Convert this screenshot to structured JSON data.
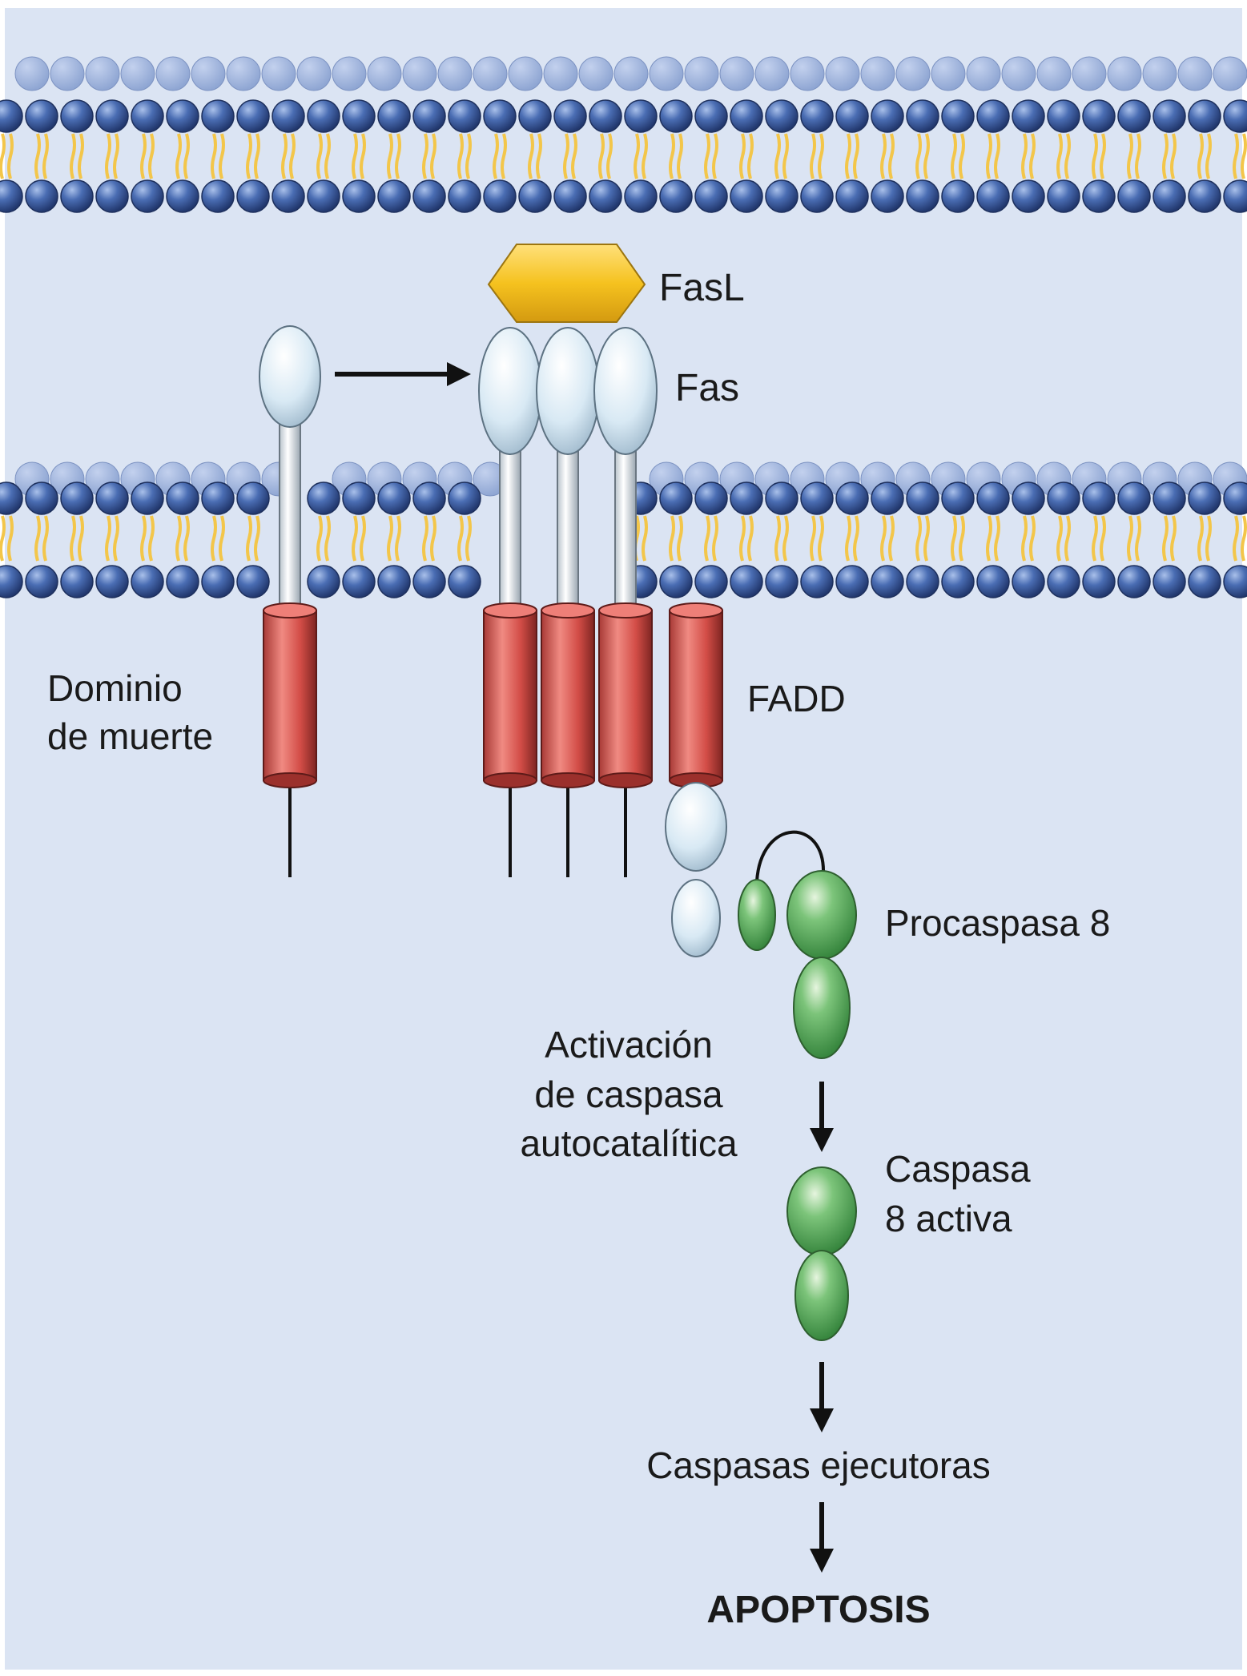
{
  "labels": {
    "fasl": "FasL",
    "fas": "Fas",
    "death_domain_line1": "Dominio",
    "death_domain_line2": "de muerte",
    "fadd": "FADD",
    "procaspase8": "Procaspasa 8",
    "autocatalytic_line1": "Activación",
    "autocatalytic_line2": "de caspasa",
    "autocatalytic_line3": "autocatalítica",
    "active_caspase8_line1": "Caspasa",
    "active_caspase8_line2": "8 activa",
    "executioner_caspases": "Caspasas ejecutoras",
    "apoptosis": "APOPTOSIS"
  },
  "colors": {
    "background": "#dbe4f3",
    "lipid_head": "#3e5fa6",
    "lipid_tail": "#f3c64a",
    "receptor": "#dfeef7",
    "death_domain": "#d9514c",
    "ligand": "#f7c325",
    "caspase": "#5fb25f"
  }
}
